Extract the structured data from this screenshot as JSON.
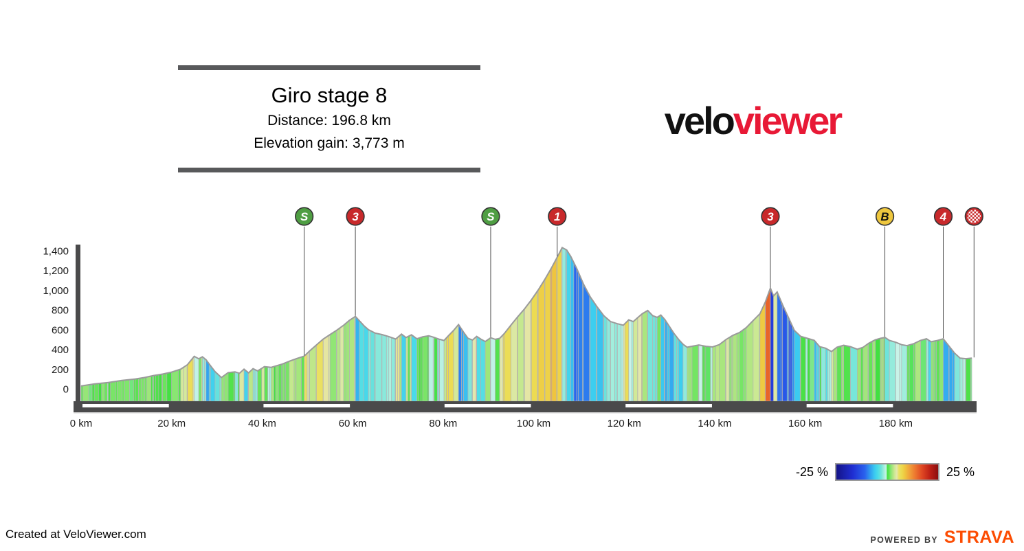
{
  "title_card": {
    "title": "Giro stage 8",
    "distance": "Distance: 196.8 km",
    "elevation_gain": "Elevation gain: 3,773 m"
  },
  "logo": {
    "part1": "velo",
    "part2": "viewer",
    "part1_color": "#111111",
    "part2_color": "#e81936"
  },
  "legend": {
    "min_label": "-25 %",
    "max_label": "25 %"
  },
  "footer": {
    "created_at": "Created at VeloViewer.com",
    "powered_by": "POWERED BY",
    "strava": "STRAVA",
    "strava_color": "#fc4c02"
  },
  "chart_data": {
    "type": "area",
    "title": "Giro stage 8",
    "distance_km": 196.8,
    "elevation_gain_m": 3773,
    "x_unit": "km",
    "y_unit": "m",
    "xlim": [
      0,
      196.8
    ],
    "ylim": [
      0,
      1400
    ],
    "grid": false,
    "axis_color": "#4a4a4b",
    "outline_color": "#9a9a9a",
    "bar_separator_color": "#b3b3b3",
    "marker_line_color": "#4a4a4a",
    "x_ticks": [
      {
        "km": 0,
        "label": "0 km"
      },
      {
        "km": 20,
        "label": "20 km"
      },
      {
        "km": 40,
        "label": "40 km"
      },
      {
        "km": 60,
        "label": "60 km"
      },
      {
        "km": 80,
        "label": "80 km"
      },
      {
        "km": 100,
        "label": "100 km"
      },
      {
        "km": 120,
        "label": "120 km"
      },
      {
        "km": 140,
        "label": "140 km"
      },
      {
        "km": 160,
        "label": "160 km"
      },
      {
        "km": 180,
        "label": "180 km"
      }
    ],
    "y_ticks": [
      {
        "m": 0,
        "label": "0"
      },
      {
        "m": 200,
        "label": "200"
      },
      {
        "m": 400,
        "label": "400"
      },
      {
        "m": 600,
        "label": "600"
      },
      {
        "m": 800,
        "label": "800"
      },
      {
        "m": 1000,
        "label": "1,000"
      },
      {
        "m": 1200,
        "label": "1,200"
      },
      {
        "m": 1400,
        "label": "1,400"
      }
    ],
    "scalebar_white_segments_km": [
      [
        0,
        20
      ],
      [
        40,
        60
      ],
      [
        80,
        100
      ],
      [
        120,
        140
      ],
      [
        160,
        180
      ]
    ],
    "markers": [
      {
        "km": 49.3,
        "type": "sprint",
        "label": "S",
        "fill": "#4f9e43",
        "text_color": "#ffffff"
      },
      {
        "km": 60.6,
        "type": "cat3-climb",
        "label": "3",
        "fill": "#c8292b",
        "text_color": "#ffffff"
      },
      {
        "km": 90.5,
        "type": "sprint",
        "label": "S",
        "fill": "#4f9e43",
        "text_color": "#ffffff"
      },
      {
        "km": 105.2,
        "type": "cat1-climb",
        "label": "1",
        "fill": "#c8292b",
        "text_color": "#ffffff"
      },
      {
        "km": 152.3,
        "type": "cat3-climb",
        "label": "3",
        "fill": "#c8292b",
        "text_color": "#ffffff"
      },
      {
        "km": 177.6,
        "type": "bonus-sprint",
        "label": "B",
        "fill": "#eec73e",
        "text_color": "#111111"
      },
      {
        "km": 190.5,
        "type": "cat4-climb",
        "label": "4",
        "fill": "#c8292b",
        "text_color": "#ffffff"
      },
      {
        "km": 197.3,
        "type": "finish",
        "label": "",
        "fill": "#c8292b",
        "text_color": "#ffffff"
      }
    ],
    "gradient_colormap": [
      [
        -25,
        "#141487"
      ],
      [
        -17,
        "#1f2ed2"
      ],
      [
        -11,
        "#2a62ee"
      ],
      [
        -8,
        "#32a6f0"
      ],
      [
        -6,
        "#3ccdf0"
      ],
      [
        -4.5,
        "#4cdce8"
      ],
      [
        -3,
        "#6fe4da"
      ],
      [
        -1.6,
        "#a2eedd"
      ],
      [
        -0.5,
        "#c9f3e8"
      ],
      [
        0,
        "#41e041"
      ],
      [
        0.8,
        "#5ce352"
      ],
      [
        1.7,
        "#87e671"
      ],
      [
        2.7,
        "#aee680"
      ],
      [
        3.7,
        "#d0e996"
      ],
      [
        4.7,
        "#e4e7ad"
      ],
      [
        5.7,
        "#e9e164"
      ],
      [
        7.2,
        "#edda4d"
      ],
      [
        8.8,
        "#efc43e"
      ],
      [
        10.5,
        "#f0a83c"
      ],
      [
        13.5,
        "#ee7b30"
      ],
      [
        17,
        "#e04823"
      ],
      [
        21,
        "#bd2015"
      ],
      [
        25,
        "#8c0f0f"
      ]
    ],
    "profile_km_elev": [
      [
        0,
        30
      ],
      [
        3,
        50
      ],
      [
        6,
        65
      ],
      [
        9,
        85
      ],
      [
        12,
        100
      ],
      [
        14,
        115
      ],
      [
        16,
        135
      ],
      [
        18,
        150
      ],
      [
        20,
        170
      ],
      [
        22,
        200
      ],
      [
        23.5,
        245
      ],
      [
        25,
        330
      ],
      [
        26,
        305
      ],
      [
        26.8,
        325
      ],
      [
        27.6,
        295
      ],
      [
        28.6,
        235
      ],
      [
        29.6,
        175
      ],
      [
        31,
        115
      ],
      [
        32.5,
        165
      ],
      [
        34,
        172
      ],
      [
        35,
        158
      ],
      [
        36,
        200
      ],
      [
        37,
        162
      ],
      [
        38,
        205
      ],
      [
        39,
        182
      ],
      [
        40.5,
        225
      ],
      [
        42,
        218
      ],
      [
        43,
        232
      ],
      [
        44.5,
        252
      ],
      [
        46,
        280
      ],
      [
        47.5,
        305
      ],
      [
        49.3,
        332
      ],
      [
        50.5,
        385
      ],
      [
        52,
        445
      ],
      [
        53.5,
        505
      ],
      [
        55,
        550
      ],
      [
        56.5,
        595
      ],
      [
        58,
        645
      ],
      [
        59.3,
        695
      ],
      [
        60.6,
        735
      ],
      [
        61.5,
        690
      ],
      [
        62.5,
        640
      ],
      [
        63.5,
        600
      ],
      [
        65,
        565
      ],
      [
        66.5,
        550
      ],
      [
        68,
        530
      ],
      [
        69.5,
        505
      ],
      [
        70.8,
        555
      ],
      [
        71.8,
        520
      ],
      [
        73,
        548
      ],
      [
        74.2,
        508
      ],
      [
        75.5,
        528
      ],
      [
        76.8,
        538
      ],
      [
        78,
        522
      ],
      [
        79.2,
        502
      ],
      [
        80.2,
        490
      ],
      [
        81.2,
        540
      ],
      [
        82.3,
        592
      ],
      [
        83.4,
        652
      ],
      [
        84.5,
        575
      ],
      [
        85.5,
        512
      ],
      [
        86.5,
        495
      ],
      [
        87.4,
        532
      ],
      [
        88.3,
        505
      ],
      [
        89.3,
        480
      ],
      [
        90.5,
        518
      ],
      [
        91.5,
        502
      ],
      [
        92.5,
        512
      ],
      [
        93.5,
        560
      ],
      [
        95,
        648
      ],
      [
        96.5,
        732
      ],
      [
        98,
        812
      ],
      [
        99.5,
        902
      ],
      [
        101,
        1002
      ],
      [
        102.5,
        1112
      ],
      [
        104,
        1232
      ],
      [
        105.2,
        1335
      ],
      [
        106.3,
        1432
      ],
      [
        107.3,
        1408
      ],
      [
        108.2,
        1342
      ],
      [
        109.5,
        1222
      ],
      [
        111,
        1062
      ],
      [
        112.5,
        932
      ],
      [
        114,
        832
      ],
      [
        115.5,
        742
      ],
      [
        117,
        682
      ],
      [
        118.5,
        660
      ],
      [
        119.8,
        645
      ],
      [
        121,
        700
      ],
      [
        122,
        682
      ],
      [
        123,
        722
      ],
      [
        124,
        762
      ],
      [
        125.2,
        795
      ],
      [
        126.3,
        742
      ],
      [
        127.3,
        725
      ],
      [
        128.1,
        748
      ],
      [
        129,
        702
      ],
      [
        130,
        632
      ],
      [
        131,
        562
      ],
      [
        132,
        502
      ],
      [
        133,
        452
      ],
      [
        133.9,
        422
      ],
      [
        135,
        432
      ],
      [
        136.5,
        445
      ],
      [
        138,
        432
      ],
      [
        139.5,
        425
      ],
      [
        141,
        448
      ],
      [
        142.5,
        500
      ],
      [
        144,
        542
      ],
      [
        145.5,
        572
      ],
      [
        147,
        622
      ],
      [
        148.5,
        692
      ],
      [
        150,
        762
      ],
      [
        151.2,
        882
      ],
      [
        152.3,
        1022
      ],
      [
        153,
        942
      ],
      [
        153.8,
        982
      ],
      [
        155,
        852
      ],
      [
        156.3,
        722
      ],
      [
        157.6,
        592
      ],
      [
        159,
        532
      ],
      [
        160.5,
        512
      ],
      [
        162,
        492
      ],
      [
        163.2,
        428
      ],
      [
        164.5,
        412
      ],
      [
        165.8,
        378
      ],
      [
        167,
        422
      ],
      [
        168.5,
        442
      ],
      [
        170,
        428
      ],
      [
        171.5,
        402
      ],
      [
        172.8,
        422
      ],
      [
        174,
        462
      ],
      [
        175.5,
        498
      ],
      [
        176.6,
        512
      ],
      [
        177.6,
        522
      ],
      [
        178.6,
        492
      ],
      [
        180,
        472
      ],
      [
        181.3,
        448
      ],
      [
        182.5,
        438
      ],
      [
        184,
        458
      ],
      [
        185.5,
        492
      ],
      [
        186.8,
        508
      ],
      [
        187.8,
        478
      ],
      [
        189,
        488
      ],
      [
        190.5,
        508
      ],
      [
        191.8,
        432
      ],
      [
        193,
        362
      ],
      [
        194.2,
        312
      ],
      [
        195.5,
        306
      ],
      [
        196.8,
        312
      ]
    ]
  }
}
